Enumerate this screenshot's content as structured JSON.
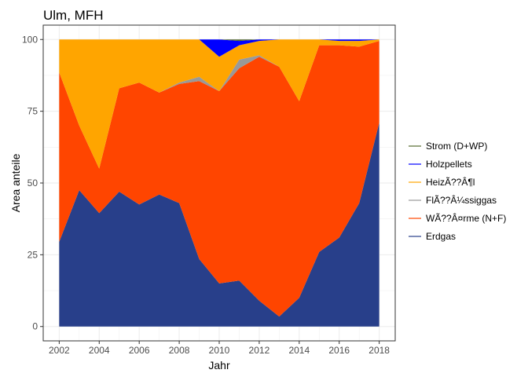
{
  "chart_data": {
    "type": "area",
    "stacked": true,
    "title": "Ulm, MFH",
    "xlabel": "Jahr",
    "ylabel": "Area anteile",
    "xlim": [
      2002,
      2018
    ],
    "ylim": [
      0,
      100
    ],
    "x_ticks": [
      2002,
      2004,
      2006,
      2008,
      2010,
      2012,
      2014,
      2016,
      2018
    ],
    "y_ticks": [
      0,
      25,
      50,
      75,
      100
    ],
    "grid": true,
    "legend_position": "right",
    "x": [
      2002,
      2003,
      2004,
      2005,
      2006,
      2007,
      2008,
      2009,
      2010,
      2011,
      2012,
      2013,
      2014,
      2015,
      2016,
      2017,
      2018
    ],
    "series": [
      {
        "name": "Erdgas",
        "color": "#283F8A",
        "values": [
          29.5,
          47.5,
          39.5,
          47,
          42.5,
          46,
          43,
          23.5,
          15,
          16,
          9,
          3.5,
          10,
          26,
          31,
          43,
          71
        ]
      },
      {
        "name": "WÃ??Â¤rme (N+F)",
        "color": "#FF4500",
        "values": [
          59,
          22.5,
          15.5,
          36,
          42.5,
          35.5,
          41.5,
          62,
          67,
          74,
          85,
          87,
          68.5,
          72,
          67,
          54.5,
          28.5
        ]
      },
      {
        "name": "FlÃ??Â¼ssiggas",
        "color": "#999999",
        "values": [
          0,
          0,
          0,
          0,
          0,
          0,
          0.5,
          1.5,
          0,
          3,
          0.5,
          0,
          0,
          0,
          0,
          0,
          0
        ]
      },
      {
        "name": "HeizÃ??Â¶l",
        "color": "#FFA500",
        "values": [
          11.5,
          30,
          45,
          17,
          15,
          18.5,
          15,
          13,
          12,
          5,
          5,
          9.5,
          21.5,
          2,
          1.5,
          2,
          0.5
        ]
      },
      {
        "name": "Holzpellets",
        "color": "#0000FF",
        "values": [
          0,
          0,
          0,
          0,
          0,
          0,
          0,
          0,
          6,
          1.5,
          0.5,
          0,
          0,
          0,
          0.5,
          0.5,
          0
        ]
      },
      {
        "name": "Strom (D+WP)",
        "color": "#556B2F",
        "values": [
          0,
          0,
          0,
          0,
          0,
          0,
          0,
          0,
          0,
          0.5,
          0,
          0,
          0,
          0,
          0,
          0,
          0
        ]
      }
    ],
    "legend_order": [
      "Strom (D+WP)",
      "Holzpellets",
      "HeizÃ??Â¶l",
      "FlÃ??Â¼ssiggas",
      "WÃ??Â¤rme (N+F)",
      "Erdgas"
    ]
  }
}
